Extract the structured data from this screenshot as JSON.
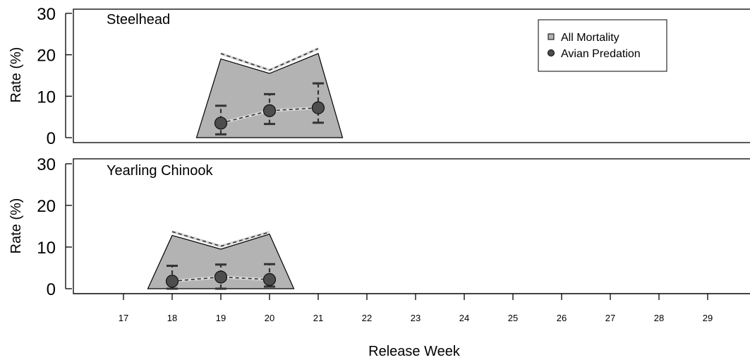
{
  "chart_data": {
    "type": "area",
    "xlabel": "Release Week",
    "ylabel": "Rate (%)",
    "ylim": [
      0,
      30
    ],
    "yticks": [
      0,
      10,
      20,
      30
    ],
    "xticks": [
      17,
      18,
      19,
      20,
      21,
      22,
      23,
      24,
      25,
      26,
      27,
      28,
      29
    ],
    "legend": {
      "position": "top-right",
      "entries": [
        {
          "label": "All Mortality",
          "marker": "square",
          "color": "#b3b3b3"
        },
        {
          "label": "Avian Predation",
          "marker": "circle",
          "color": "#4d4d4d"
        }
      ]
    },
    "colors": {
      "fill": "#b3b3b3",
      "points": "#4d4d4d",
      "upper_line": "#d9d9d9"
    },
    "panels": [
      {
        "title": "Steelhead",
        "all_mortality": {
          "weeks": [
            19,
            20,
            21
          ],
          "values": [
            19,
            15.5,
            20.3
          ],
          "upper": [
            20.3,
            16.3,
            21.5
          ]
        },
        "avian_predation": {
          "weeks": [
            19,
            20,
            21
          ],
          "values": [
            3.5,
            6.5,
            7.2
          ],
          "lower": [
            0.8,
            3.3,
            3.6
          ],
          "upper": [
            7.7,
            10.5,
            13.1
          ]
        }
      },
      {
        "title": "Yearling Chinook",
        "all_mortality": {
          "weeks": [
            18,
            19,
            20
          ],
          "values": [
            12.8,
            9.5,
            13.1
          ],
          "upper": [
            13.7,
            10.2,
            13.6
          ]
        },
        "avian_predation": {
          "weeks": [
            18,
            19,
            20
          ],
          "values": [
            1.8,
            2.8,
            2.2
          ],
          "lower": [
            0,
            0,
            0.5
          ],
          "upper": [
            5.5,
            5.8,
            5.9
          ]
        }
      }
    ]
  }
}
